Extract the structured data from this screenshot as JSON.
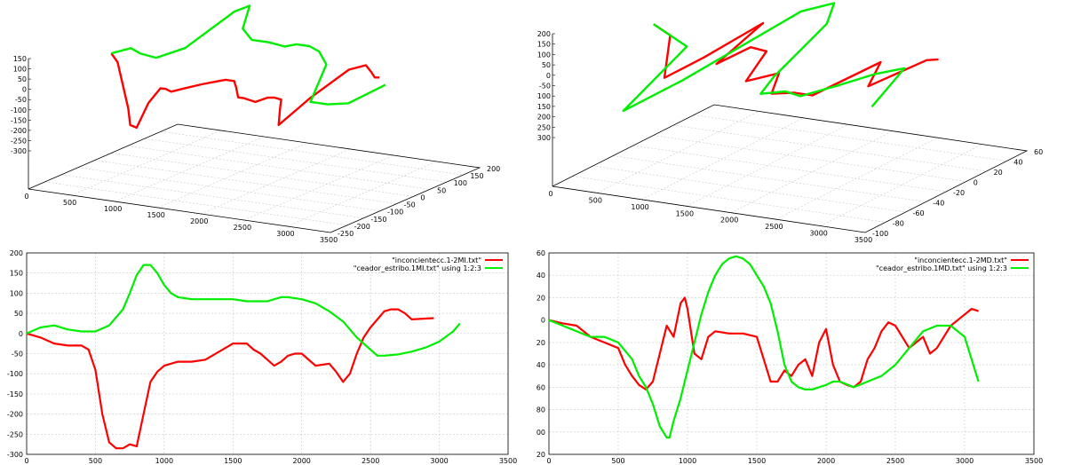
{
  "chart_data": [
    {
      "type": "line",
      "projection": "3d",
      "xticks": [
        "0",
        "500",
        "1000",
        "1500",
        "2000",
        "2500",
        "3000",
        "3500"
      ],
      "yticks": [
        "-250",
        "-200",
        "-150",
        "-100",
        "-50",
        "0",
        "50",
        "100",
        "150",
        "200"
      ],
      "zticks": [
        "150",
        "100",
        "50",
        "0",
        "-50",
        "-100",
        "-150",
        "-200",
        "-250",
        "-300"
      ],
      "xlim": [
        0,
        3500
      ],
      "ylim": [
        -250,
        200
      ],
      "zlim": [
        -300,
        150
      ],
      "grid": true,
      "series": [
        {
          "color": "#ff0000",
          "x": [
            0,
            150,
            250,
            350,
            450,
            600,
            700,
            800,
            900,
            1000,
            1100,
            1200,
            1300,
            1400,
            1500,
            1600,
            1700,
            1800,
            1900,
            2000,
            2100,
            2200,
            2300,
            2400,
            2500,
            2600,
            2700,
            2800,
            2900,
            2960
          ],
          "y": [
            0,
            -20,
            -30,
            -40,
            -60,
            -80,
            -70,
            -60,
            -70,
            -80,
            -60,
            -40,
            -30,
            -20,
            -20,
            -40,
            -60,
            -70,
            -60,
            -50,
            -55,
            -60,
            -90,
            -120,
            -50,
            40,
            65,
            55,
            40,
            38
          ],
          "z": [
            0,
            -20,
            -120,
            -220,
            -280,
            -270,
            -150,
            -80,
            -70,
            -70,
            -60,
            -50,
            -40,
            -30,
            -30,
            -40,
            -70,
            -60,
            -80,
            -60,
            -50,
            -50,
            -70,
            -120,
            -30,
            50,
            60,
            40,
            30,
            35
          ]
        },
        {
          "color": "#00ee00",
          "x": [
            0,
            150,
            300,
            500,
            700,
            850,
            950,
            1100,
            1300,
            1500,
            1700,
            1800,
            1950,
            2100,
            2300,
            2500,
            2700,
            2900,
            3100
          ],
          "y": [
            0,
            20,
            10,
            5,
            40,
            150,
            170,
            110,
            85,
            85,
            80,
            90,
            90,
            80,
            50,
            -50,
            -50,
            -40,
            20
          ],
          "z": [
            0,
            20,
            10,
            5,
            40,
            150,
            170,
            110,
            85,
            85,
            80,
            90,
            90,
            80,
            50,
            -50,
            -50,
            -40,
            20
          ]
        }
      ]
    },
    {
      "type": "line",
      "projection": "3d",
      "xticks": [
        "0",
        "500",
        "1000",
        "1500",
        "2000",
        "2500",
        "3000",
        "3500"
      ],
      "yticks": [
        "-100",
        "-80",
        "-60",
        "-40",
        "-20",
        "0",
        "20",
        "40",
        "60"
      ],
      "zticks": [
        "200",
        "150",
        "100",
        "50",
        "0",
        "-50",
        "-100",
        "-150",
        "-200",
        "-250",
        "-300"
      ],
      "xlim": [
        0,
        3500
      ],
      "ylim": [
        -100,
        60
      ],
      "zlim": [
        -300,
        200
      ],
      "grid": true,
      "series": [
        {
          "color": "#ff0000",
          "x": [
            0,
            300,
            600,
            800,
            900,
            1000,
            1100,
            1200,
            1400,
            1600,
            1800,
            2000,
            2200,
            2400,
            2600,
            2800,
            3000,
            3100
          ],
          "y": [
            0,
            -10,
            -40,
            -60,
            -30,
            20,
            -35,
            -10,
            -12,
            -50,
            -35,
            -60,
            -55,
            -55,
            -5,
            -35,
            5,
            8
          ],
          "z": [
            0,
            -10,
            -40,
            -60,
            -30,
            20,
            -35,
            -10,
            -12,
            -50,
            -35,
            -60,
            -55,
            -55,
            -5,
            -35,
            5,
            8
          ]
        },
        {
          "color": "#00ee00",
          "x": [
            0,
            300,
            600,
            850,
            1000,
            1200,
            1400,
            1600,
            1800,
            1900,
            2100,
            2300,
            2500,
            2700,
            2900,
            3100
          ],
          "y": [
            0,
            -10,
            -20,
            -105,
            -60,
            40,
            55,
            30,
            -40,
            -62,
            -55,
            -58,
            -40,
            -20,
            -8,
            -58
          ],
          "z": [
            0,
            -10,
            -20,
            -105,
            -60,
            40,
            55,
            30,
            -40,
            -62,
            -55,
            -58,
            -40,
            -20,
            -8,
            -58
          ]
        }
      ]
    },
    {
      "type": "line",
      "xlim": [
        0,
        3500
      ],
      "ylim": [
        -300,
        200
      ],
      "xticks": [
        "0",
        "500",
        "1000",
        "1500",
        "2000",
        "2500",
        "3000",
        "3500"
      ],
      "yticks": [
        "200",
        "150",
        "100",
        "50",
        "0",
        "-50",
        "-100",
        "-150",
        "-200",
        "-250",
        "-300"
      ],
      "grid": true,
      "legend": "top-right",
      "series": [
        {
          "name": "\"inconcientecc.1-2MI.txt\"",
          "color": "#ff0000",
          "x": [
            0,
            100,
            200,
            300,
            400,
            450,
            500,
            550,
            600,
            650,
            700,
            750,
            800,
            850,
            900,
            950,
            1000,
            1100,
            1200,
            1300,
            1400,
            1500,
            1600,
            1650,
            1700,
            1750,
            1800,
            1850,
            1900,
            1950,
            2000,
            2100,
            2200,
            2250,
            2300,
            2350,
            2400,
            2450,
            2500,
            2550,
            2600,
            2650,
            2700,
            2750,
            2800,
            2900,
            2960
          ],
          "y": [
            0,
            -10,
            -25,
            -30,
            -30,
            -40,
            -90,
            -200,
            -270,
            -285,
            -285,
            -275,
            -280,
            -200,
            -120,
            -95,
            -80,
            -70,
            -70,
            -65,
            -45,
            -25,
            -25,
            -40,
            -50,
            -65,
            -80,
            -70,
            -55,
            -50,
            -50,
            -80,
            -75,
            -95,
            -120,
            -100,
            -50,
            -10,
            15,
            35,
            55,
            60,
            60,
            50,
            35,
            37,
            38
          ]
        },
        {
          "name": "\"ceador_estribo.1MI.txt\" using 1:2:3",
          "color": "#00ee00",
          "x": [
            0,
            100,
            200,
            300,
            400,
            500,
            600,
            700,
            750,
            800,
            850,
            900,
            950,
            1000,
            1050,
            1100,
            1200,
            1300,
            1400,
            1500,
            1600,
            1700,
            1750,
            1800,
            1850,
            1900,
            2000,
            2100,
            2200,
            2300,
            2400,
            2500,
            2550,
            2600,
            2700,
            2800,
            2900,
            3000,
            3100,
            3150
          ],
          "y": [
            0,
            15,
            20,
            10,
            5,
            5,
            20,
            60,
            100,
            145,
            170,
            170,
            150,
            120,
            100,
            90,
            85,
            85,
            85,
            85,
            80,
            80,
            80,
            85,
            90,
            90,
            85,
            75,
            55,
            30,
            -10,
            -40,
            -55,
            -55,
            -52,
            -45,
            -35,
            -20,
            5,
            25
          ]
        }
      ]
    },
    {
      "type": "line",
      "xlim": [
        0,
        3500
      ],
      "ylim": [
        -120,
        60
      ],
      "xticks": [
        "0",
        "500",
        "1000",
        "1500",
        "2000",
        "2500",
        "3000",
        "3500"
      ],
      "yticks": [
        "60",
        "40",
        "20",
        "0",
        "-20",
        "-40",
        "-60",
        "-80",
        "-100",
        "-120"
      ],
      "grid": true,
      "legend": "top-right",
      "series": [
        {
          "name": "\"inconcientecc.1-2MD.txt\"",
          "color": "#ff0000",
          "x": [
            0,
            100,
            200,
            300,
            400,
            500,
            550,
            600,
            650,
            700,
            750,
            800,
            850,
            900,
            950,
            980,
            1000,
            1050,
            1100,
            1150,
            1200,
            1300,
            1400,
            1500,
            1550,
            1600,
            1650,
            1700,
            1750,
            1800,
            1850,
            1900,
            1950,
            2000,
            2050,
            2100,
            2150,
            2200,
            2250,
            2300,
            2350,
            2400,
            2450,
            2500,
            2550,
            2600,
            2650,
            2700,
            2750,
            2800,
            2850,
            2900,
            2950,
            3000,
            3050,
            3100
          ],
          "y": [
            0,
            -3,
            -5,
            -15,
            -20,
            -25,
            -40,
            -50,
            -58,
            -62,
            -55,
            -30,
            -5,
            -15,
            15,
            20,
            10,
            -30,
            -35,
            -15,
            -10,
            -12,
            -12,
            -15,
            -35,
            -55,
            -55,
            -45,
            -50,
            -40,
            -35,
            -50,
            -20,
            -8,
            -40,
            -55,
            -58,
            -60,
            -55,
            -35,
            -25,
            -10,
            -2,
            -5,
            -15,
            -25,
            -20,
            -15,
            -30,
            -25,
            -15,
            -5,
            0,
            5,
            10,
            8
          ]
        },
        {
          "name": "\"ceador_estribo.1MD.txt\" using 1:2:3",
          "color": "#00ee00",
          "x": [
            0,
            100,
            200,
            300,
            400,
            500,
            600,
            650,
            700,
            750,
            800,
            850,
            870,
            900,
            950,
            1000,
            1050,
            1100,
            1150,
            1200,
            1250,
            1300,
            1350,
            1400,
            1450,
            1500,
            1550,
            1600,
            1650,
            1700,
            1750,
            1800,
            1850,
            1900,
            1950,
            2000,
            2050,
            2100,
            2200,
            2300,
            2400,
            2500,
            2600,
            2700,
            2800,
            2900,
            3000,
            3050,
            3100
          ],
          "y": [
            0,
            -5,
            -10,
            -15,
            -15,
            -20,
            -35,
            -50,
            -60,
            -75,
            -95,
            -105,
            -105,
            -90,
            -70,
            -45,
            -20,
            5,
            25,
            40,
            50,
            55,
            57,
            55,
            50,
            40,
            30,
            15,
            -10,
            -40,
            -55,
            -60,
            -62,
            -62,
            -60,
            -58,
            -55,
            -55,
            -60,
            -55,
            -50,
            -40,
            -25,
            -10,
            -5,
            -5,
            -15,
            -35,
            -55
          ]
        }
      ]
    }
  ]
}
